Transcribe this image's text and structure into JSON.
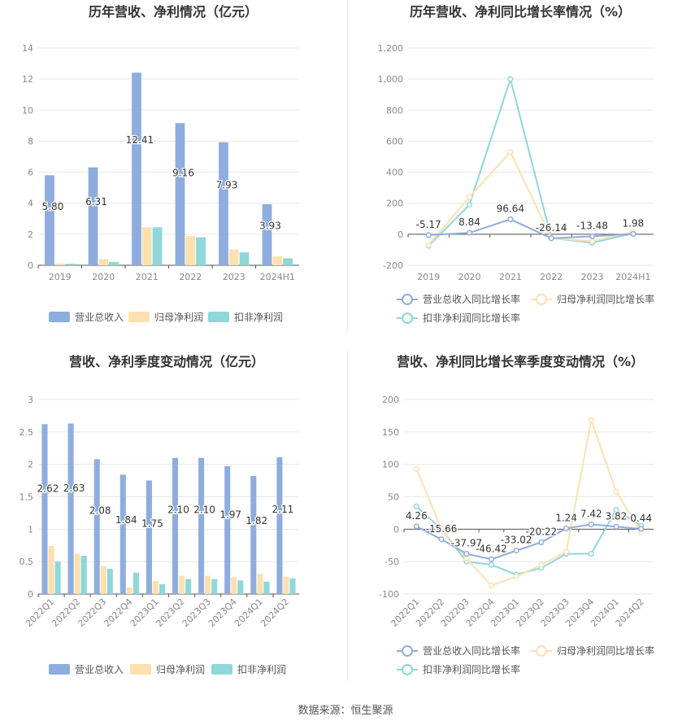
{
  "source_text": "数据来源：恒生聚源",
  "colors": {
    "revenue": "#8eadde",
    "net_profit": "#fde0b0",
    "deducted_profit": "#8fd7d9",
    "revenue_line": "#8eadde",
    "net_line": "#fde0b0",
    "deducted_line": "#8fd7d9"
  },
  "chart_data": [
    {
      "id": "annual-bar",
      "type": "bar",
      "title": "历年营收、净利情况（亿元）",
      "categories": [
        "2019",
        "2020",
        "2021",
        "2022",
        "2023",
        "2024H1"
      ],
      "yticks": [
        "0",
        "2",
        "4",
        "6",
        "8",
        "10",
        "12",
        "14"
      ],
      "ylim": [
        0,
        14
      ],
      "grid": true,
      "legend_position": "bottom",
      "series": [
        {
          "name": "营业总收入",
          "values": [
            5.8,
            6.31,
            12.41,
            9.16,
            7.93,
            3.93
          ],
          "labels": [
            "5.80",
            "6.31",
            "12.41",
            "9.16",
            "7.93",
            "3.93"
          ]
        },
        {
          "name": "归母净利润",
          "values": [
            0.12,
            0.4,
            2.45,
            1.88,
            1.01,
            0.57
          ]
        },
        {
          "name": "扣非净利润",
          "values": [
            0.1,
            0.22,
            2.45,
            1.8,
            0.83,
            0.45
          ]
        }
      ]
    },
    {
      "id": "annual-line",
      "type": "line",
      "title": "历年营收、净利同比增长率情况（%）",
      "categories": [
        "2019",
        "2020",
        "2021",
        "2022",
        "2023",
        "2024H1"
      ],
      "yticks": [
        "-200",
        "0",
        "200",
        "400",
        "600",
        "800",
        "1,000",
        "1,200"
      ],
      "ylim": [
        -200,
        1200
      ],
      "grid": true,
      "legend_position": "bottom",
      "series": [
        {
          "name": "营业总收入同比增长率",
          "values": [
            -5.17,
            8.84,
            96.64,
            -26.14,
            -13.48,
            1.98
          ],
          "labels": [
            "-5.17",
            "8.84",
            "96.64",
            "-26.14",
            "-13.48",
            "1.98"
          ]
        },
        {
          "name": "归母净利润同比增长率",
          "values": [
            -70,
            240,
            530,
            -25,
            -45,
            15
          ]
        },
        {
          "name": "扣非净利润同比增长率",
          "values": [
            -75,
            190,
            1000,
            -25,
            -55,
            5
          ]
        }
      ]
    },
    {
      "id": "quarterly-bar",
      "type": "bar",
      "title": "营收、净利季度变动情况（亿元）",
      "categories": [
        "2022Q1",
        "2022Q2",
        "2022Q3",
        "2022Q4",
        "2023Q1",
        "2023Q2",
        "2023Q3",
        "2023Q4",
        "2024Q1",
        "2024Q2"
      ],
      "yticks": [
        "0",
        "0.5",
        "1",
        "1.5",
        "2",
        "2.5",
        "3"
      ],
      "ylim": [
        0,
        3
      ],
      "grid": true,
      "legend_position": "bottom",
      "series": [
        {
          "name": "营业总收入",
          "values": [
            2.62,
            2.63,
            2.08,
            1.84,
            1.75,
            2.1,
            2.1,
            1.97,
            1.82,
            2.11
          ],
          "labels": [
            "2.62",
            "2.63",
            "2.08",
            "1.84",
            "1.75",
            "2.10",
            "2.10",
            "1.97",
            "1.82",
            "2.11"
          ]
        },
        {
          "name": "归母净利润",
          "values": [
            0.74,
            0.62,
            0.43,
            0.1,
            0.2,
            0.28,
            0.28,
            0.26,
            0.31,
            0.27
          ]
        },
        {
          "name": "扣非净利润",
          "values": [
            0.5,
            0.59,
            0.39,
            0.33,
            0.15,
            0.23,
            0.23,
            0.21,
            0.19,
            0.24
          ]
        }
      ]
    },
    {
      "id": "quarterly-line",
      "type": "line",
      "title": "营收、净利同比增长率季度变动情况（%）",
      "categories": [
        "2022Q1",
        "2022Q2",
        "2022Q3",
        "2022Q4",
        "2023Q1",
        "2023Q2",
        "2023Q3",
        "2023Q4",
        "2024Q1",
        "2024Q2"
      ],
      "yticks": [
        "-100",
        "-50",
        "0",
        "50",
        "100",
        "150",
        "200"
      ],
      "ylim": [
        -100,
        200
      ],
      "grid": true,
      "legend_position": "bottom",
      "series": [
        {
          "name": "营业总收入同比增长率",
          "values": [
            4.26,
            -15.66,
            -37.97,
            -46.42,
            -33.02,
            -20.22,
            1.24,
            7.42,
            3.82,
            0.44
          ],
          "labels": [
            "4.26",
            "-15.66",
            "-37.97",
            "-46.42",
            "-33.02",
            "-20.22",
            "1.24",
            "7.42",
            "3.82",
            "0.44"
          ]
        },
        {
          "name": "归母净利润同比增长率",
          "values": [
            93,
            0,
            -45,
            -87,
            -73,
            -55,
            -35,
            168,
            58,
            -5
          ]
        },
        {
          "name": "扣非净利润同比增长率",
          "values": [
            35,
            0,
            -50,
            -55,
            -70,
            -60,
            -38,
            -38,
            30,
            5
          ]
        }
      ]
    }
  ]
}
